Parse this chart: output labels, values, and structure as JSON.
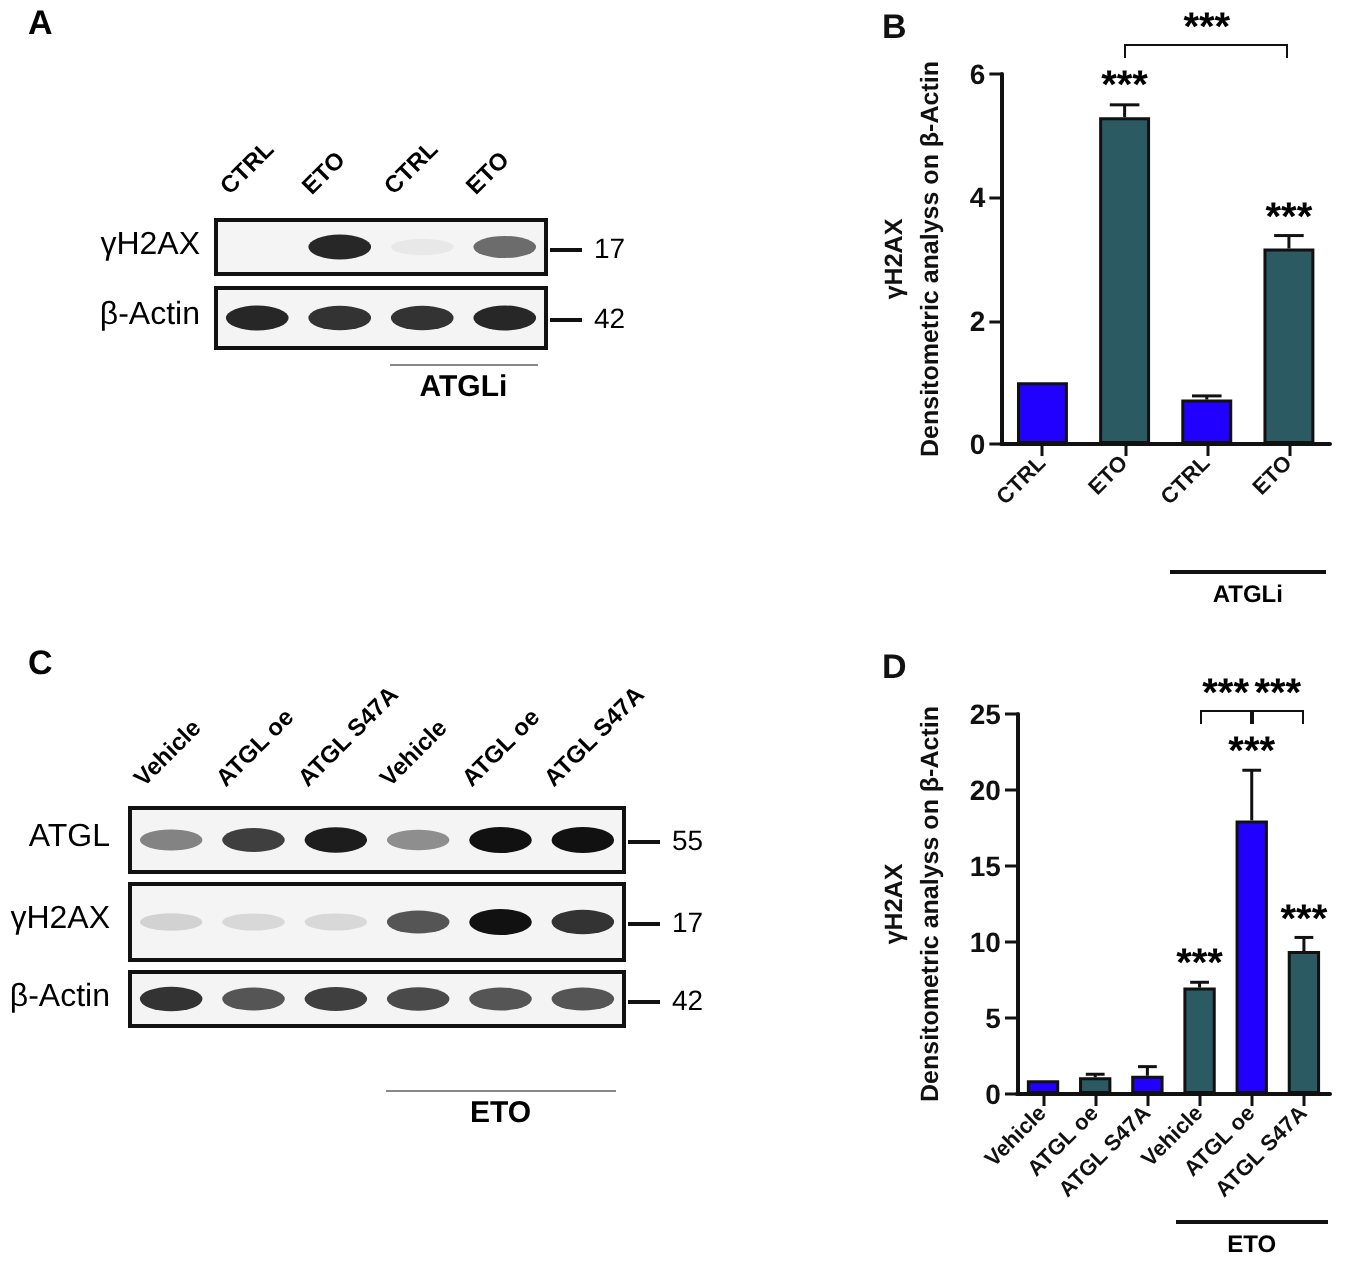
{
  "chart_data": [
    {
      "type": "other",
      "title": "A",
      "categories": [
        "CTRL",
        "ETO",
        "CTRL",
        "ETO"
      ],
      "y_categories": [
        "γH2AX",
        "β-Actin"
      ],
      "y2_categories": [
        "17",
        "42"
      ],
      "annotations": [
        "ATGLi"
      ]
    },
    {
      "type": "bar",
      "title": "B",
      "categories": [
        "CTRL",
        "ETO",
        "CTRL",
        "ETO"
      ],
      "values": [
        1.0,
        5.3,
        0.72,
        3.17
      ],
      "colors": [
        "#2200ff",
        "#2b5a63",
        "#2200ff",
        "#2b5a63"
      ],
      "errors": [
        null,
        [
          5.3,
          5.5
        ],
        [
          0.72,
          0.78
        ],
        [
          3.17,
          3.38
        ]
      ],
      "ylabel": "γH2AX\nDensitometric analyss on β-Actin",
      "ylim": [
        0,
        6
      ],
      "yticks": [
        0,
        2,
        4,
        6
      ],
      "annotations": [
        "***",
        "***",
        "***",
        "ATGLi"
      ]
    },
    {
      "type": "other",
      "title": "C",
      "categories": [
        "Vehicle",
        "ATGL oe",
        "ATGL S47A",
        "Vehicle",
        "ATGL oe",
        "ATGL S47A"
      ],
      "y_categories": [
        "ATGL",
        "γH2AX",
        "β-Actin"
      ],
      "y2_categories": [
        "55",
        "17",
        "42"
      ],
      "annotations": [
        "ETO"
      ]
    },
    {
      "type": "bar",
      "title": "D",
      "categories": [
        "Vehicle",
        "ATGL oe",
        "ATGL S47A",
        "Vehicle",
        "ATGL oe",
        "ATGL S47A"
      ],
      "values": [
        0.9,
        1.1,
        1.2,
        7.0,
        18.0,
        9.4
      ],
      "colors": [
        "#2200ff",
        "#2b5a63",
        "#2200ff",
        "#2b5a63",
        "#2200ff",
        "#2b5a63"
      ],
      "errors": [
        null,
        [
          1.1,
          1.3
        ],
        [
          1.2,
          1.8
        ],
        [
          7.0,
          7.35
        ],
        [
          18.0,
          21.3
        ],
        [
          9.4,
          10.3
        ]
      ],
      "ylabel": "γH2AX\nDensitometric analyss on β-Actin",
      "ylim": [
        0,
        25
      ],
      "yticks": [
        0,
        5,
        10,
        15,
        20,
        25
      ],
      "annotations": [
        "***",
        "***",
        "***",
        "***",
        "***",
        "ETO"
      ]
    }
  ]
}
